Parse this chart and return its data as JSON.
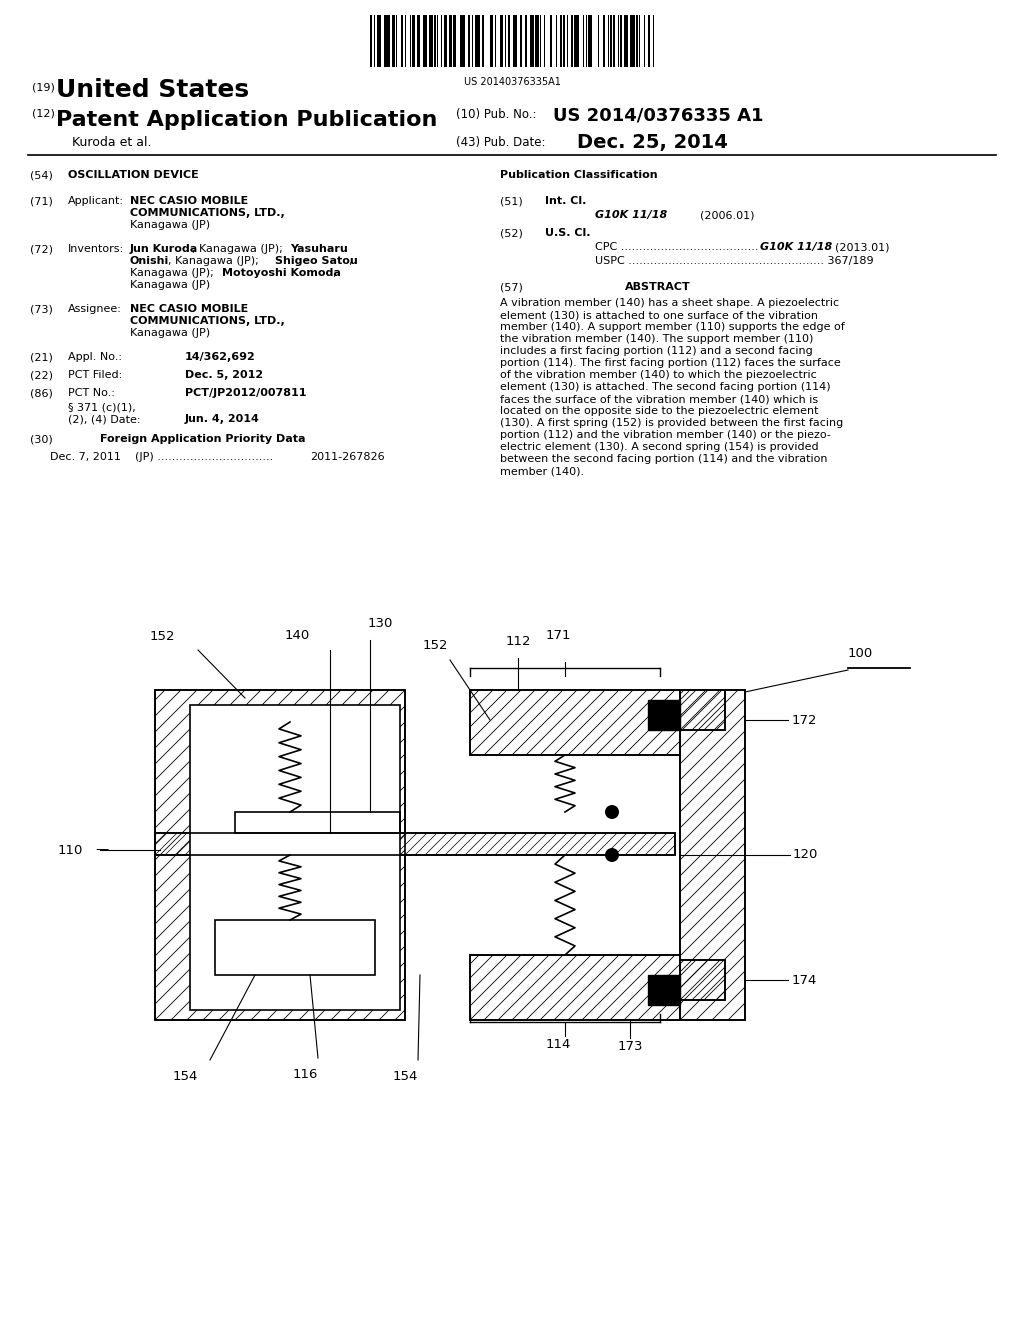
{
  "bg_color": "#ffffff",
  "barcode_text": "US 20140376335A1",
  "title_country": "United States",
  "title_type": "Patent Application Publication",
  "pub_no": "US 2014/0376335 A1",
  "inventor_line": "Kuroda et al.",
  "pub_date": "Dec. 25, 2014",
  "abstract": "A vibration member (140) has a sheet shape. A piezoelectric element (130) is attached to one surface of the vibration member (140). A support member (110) supports the edge of the vibration member (140). The support member (110) includes a first facing portion (112) and a second facing portion (114). The first facing portion (112) faces the surface of the vibration member (140) to which the piezoelectric element (130) is attached. The second facing portion (114) faces the surface of the vibration member (140) which is located on the opposite side to the piezoelectric element (130). A first spring (152) is provided between the first facing portion (112) and the vibration member (140) or the piezo-electric element (130). A second spring (154) is provided between the second facing portion (114) and the vibration member (140)."
}
